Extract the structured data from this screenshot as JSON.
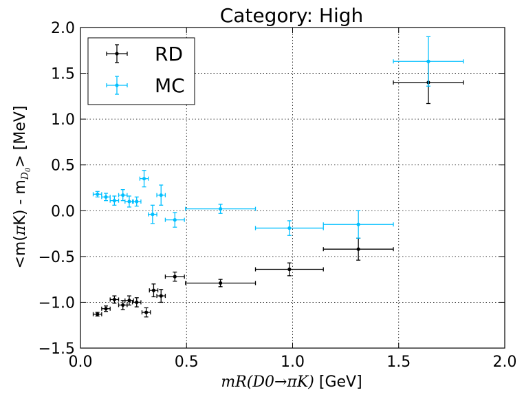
{
  "chart_data": {
    "type": "scatter",
    "title": "Category: High",
    "xlabel": "m_R(D_0→πK) [GeV]",
    "xlabel_parts": {
      "math": "mR(D0→πK)",
      "unit": " [GeV]"
    },
    "ylabel": "<m(πK) - m_D0> [MeV]",
    "ylabel_parts": {
      "pre": "<m(",
      "pi": "π",
      "mid": "K) - m",
      "sub": "D",
      "subsub": "0",
      "post": "> [MeV]"
    },
    "xlim": [
      0.0,
      2.0
    ],
    "ylim": [
      -1.5,
      2.0
    ],
    "xticks": [
      0.0,
      0.5,
      1.0,
      1.5,
      2.0
    ],
    "xtick_labels": [
      "0.0",
      "0.5",
      "1.0",
      "1.5",
      "2.0"
    ],
    "yticks": [
      -1.5,
      -1.0,
      -0.5,
      0.0,
      0.5,
      1.0,
      1.5,
      2.0
    ],
    "ytick_labels": [
      "−1.5",
      "−1.0",
      "−0.5",
      "0.0",
      "0.5",
      "1.0",
      "1.5",
      "2.0"
    ],
    "grid": true,
    "legend_position": "top-left",
    "series": [
      {
        "name": "RD",
        "color": "#000000",
        "points": [
          {
            "x": 0.08,
            "xerr": 0.02,
            "y": -1.13,
            "yerr": 0.02
          },
          {
            "x": 0.12,
            "xerr": 0.02,
            "y": -1.07,
            "yerr": 0.03
          },
          {
            "x": 0.16,
            "xerr": 0.02,
            "y": -0.97,
            "yerr": 0.04
          },
          {
            "x": 0.2,
            "xerr": 0.02,
            "y": -1.03,
            "yerr": 0.05
          },
          {
            "x": 0.23,
            "xerr": 0.02,
            "y": -0.98,
            "yerr": 0.05
          },
          {
            "x": 0.265,
            "xerr": 0.02,
            "y": -1.0,
            "yerr": 0.05
          },
          {
            "x": 0.31,
            "xerr": 0.02,
            "y": -1.11,
            "yerr": 0.05
          },
          {
            "x": 0.345,
            "xerr": 0.02,
            "y": -0.87,
            "yerr": 0.07
          },
          {
            "x": 0.38,
            "xerr": 0.02,
            "y": -0.93,
            "yerr": 0.07
          },
          {
            "x": 0.445,
            "xerr": 0.045,
            "y": -0.72,
            "yerr": 0.05
          },
          {
            "x": 0.66,
            "xerr": 0.165,
            "y": -0.79,
            "yerr": 0.04
          },
          {
            "x": 0.985,
            "xerr": 0.16,
            "y": -0.64,
            "yerr": 0.07
          },
          {
            "x": 1.31,
            "xerr": 0.165,
            "y": -0.42,
            "yerr": 0.12
          },
          {
            "x": 1.64,
            "xerr": 0.165,
            "y": 1.4,
            "yerr": 0.23
          }
        ]
      },
      {
        "name": "MC",
        "color": "#00bfff",
        "points": [
          {
            "x": 0.08,
            "xerr": 0.02,
            "y": 0.18,
            "yerr": 0.03
          },
          {
            "x": 0.12,
            "xerr": 0.02,
            "y": 0.15,
            "yerr": 0.04
          },
          {
            "x": 0.16,
            "xerr": 0.02,
            "y": 0.11,
            "yerr": 0.05
          },
          {
            "x": 0.2,
            "xerr": 0.02,
            "y": 0.17,
            "yerr": 0.06
          },
          {
            "x": 0.23,
            "xerr": 0.02,
            "y": 0.1,
            "yerr": 0.06
          },
          {
            "x": 0.265,
            "xerr": 0.02,
            "y": 0.1,
            "yerr": 0.05
          },
          {
            "x": 0.3,
            "xerr": 0.02,
            "y": 0.35,
            "yerr": 0.09
          },
          {
            "x": 0.34,
            "xerr": 0.02,
            "y": -0.04,
            "yerr": 0.1
          },
          {
            "x": 0.38,
            "xerr": 0.02,
            "y": 0.17,
            "yerr": 0.11
          },
          {
            "x": 0.445,
            "xerr": 0.045,
            "y": -0.1,
            "yerr": 0.08
          },
          {
            "x": 0.66,
            "xerr": 0.165,
            "y": 0.02,
            "yerr": 0.05
          },
          {
            "x": 0.985,
            "xerr": 0.16,
            "y": -0.19,
            "yerr": 0.08
          },
          {
            "x": 1.31,
            "xerr": 0.165,
            "y": -0.15,
            "yerr": 0.15
          },
          {
            "x": 1.64,
            "xerr": 0.165,
            "y": 1.63,
            "yerr": 0.27
          }
        ]
      }
    ]
  }
}
